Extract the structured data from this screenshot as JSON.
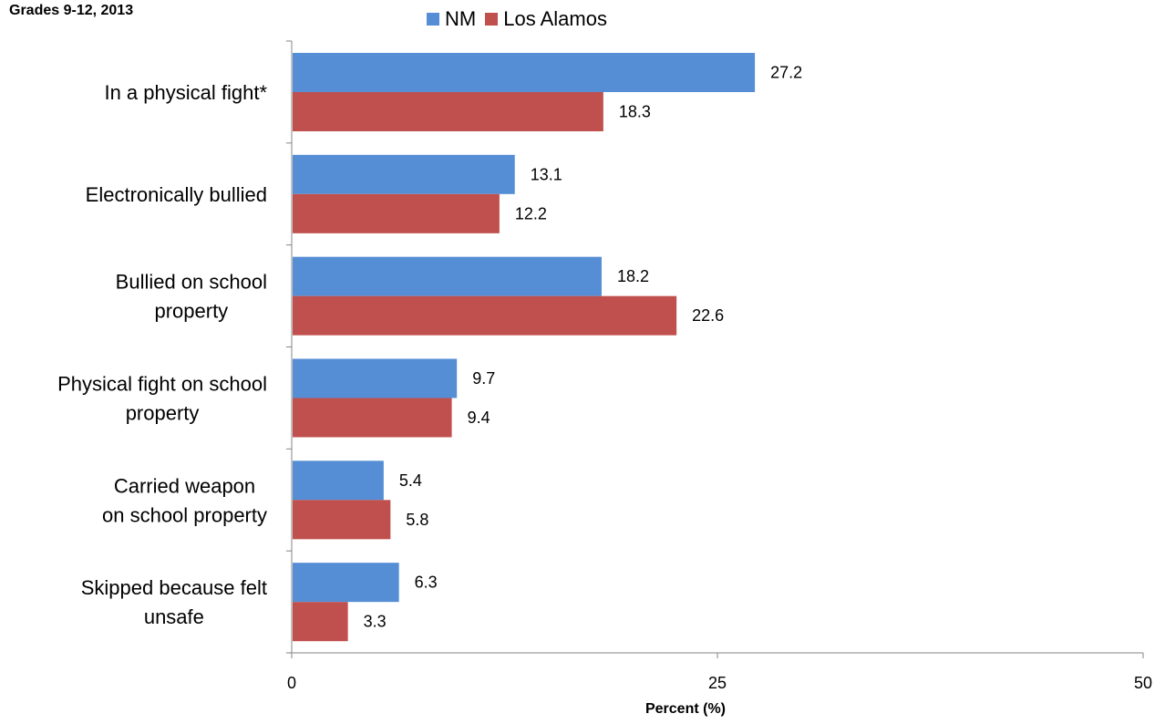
{
  "subtitle": "Grades 9-12, 2013",
  "colors": {
    "nm": "#558ED5",
    "los_alamos": "#C0504D",
    "axis": "#868686"
  },
  "chart_data": {
    "type": "bar",
    "orientation": "horizontal",
    "categories": [
      [
        "In a physical fight*"
      ],
      [
        "Electronically bullied"
      ],
      [
        "Bullied on school",
        "property"
      ],
      [
        "Physical fight on school",
        "property"
      ],
      [
        "Carried weapon",
        "on school property"
      ],
      [
        "Skipped because felt",
        "unsafe"
      ]
    ],
    "series": [
      {
        "name": "NM",
        "color": "#558ED5",
        "values": [
          27.2,
          13.1,
          18.2,
          9.7,
          5.4,
          6.3
        ]
      },
      {
        "name": "Los Alamos",
        "color": "#C0504D",
        "values": [
          18.3,
          12.2,
          22.6,
          9.4,
          5.8,
          3.3
        ]
      }
    ],
    "xlabel": "Percent (%)",
    "ylabel": "",
    "xlim": [
      0,
      50
    ],
    "xticks": [
      0,
      25,
      50
    ],
    "grid": false,
    "legend_position": "top"
  }
}
